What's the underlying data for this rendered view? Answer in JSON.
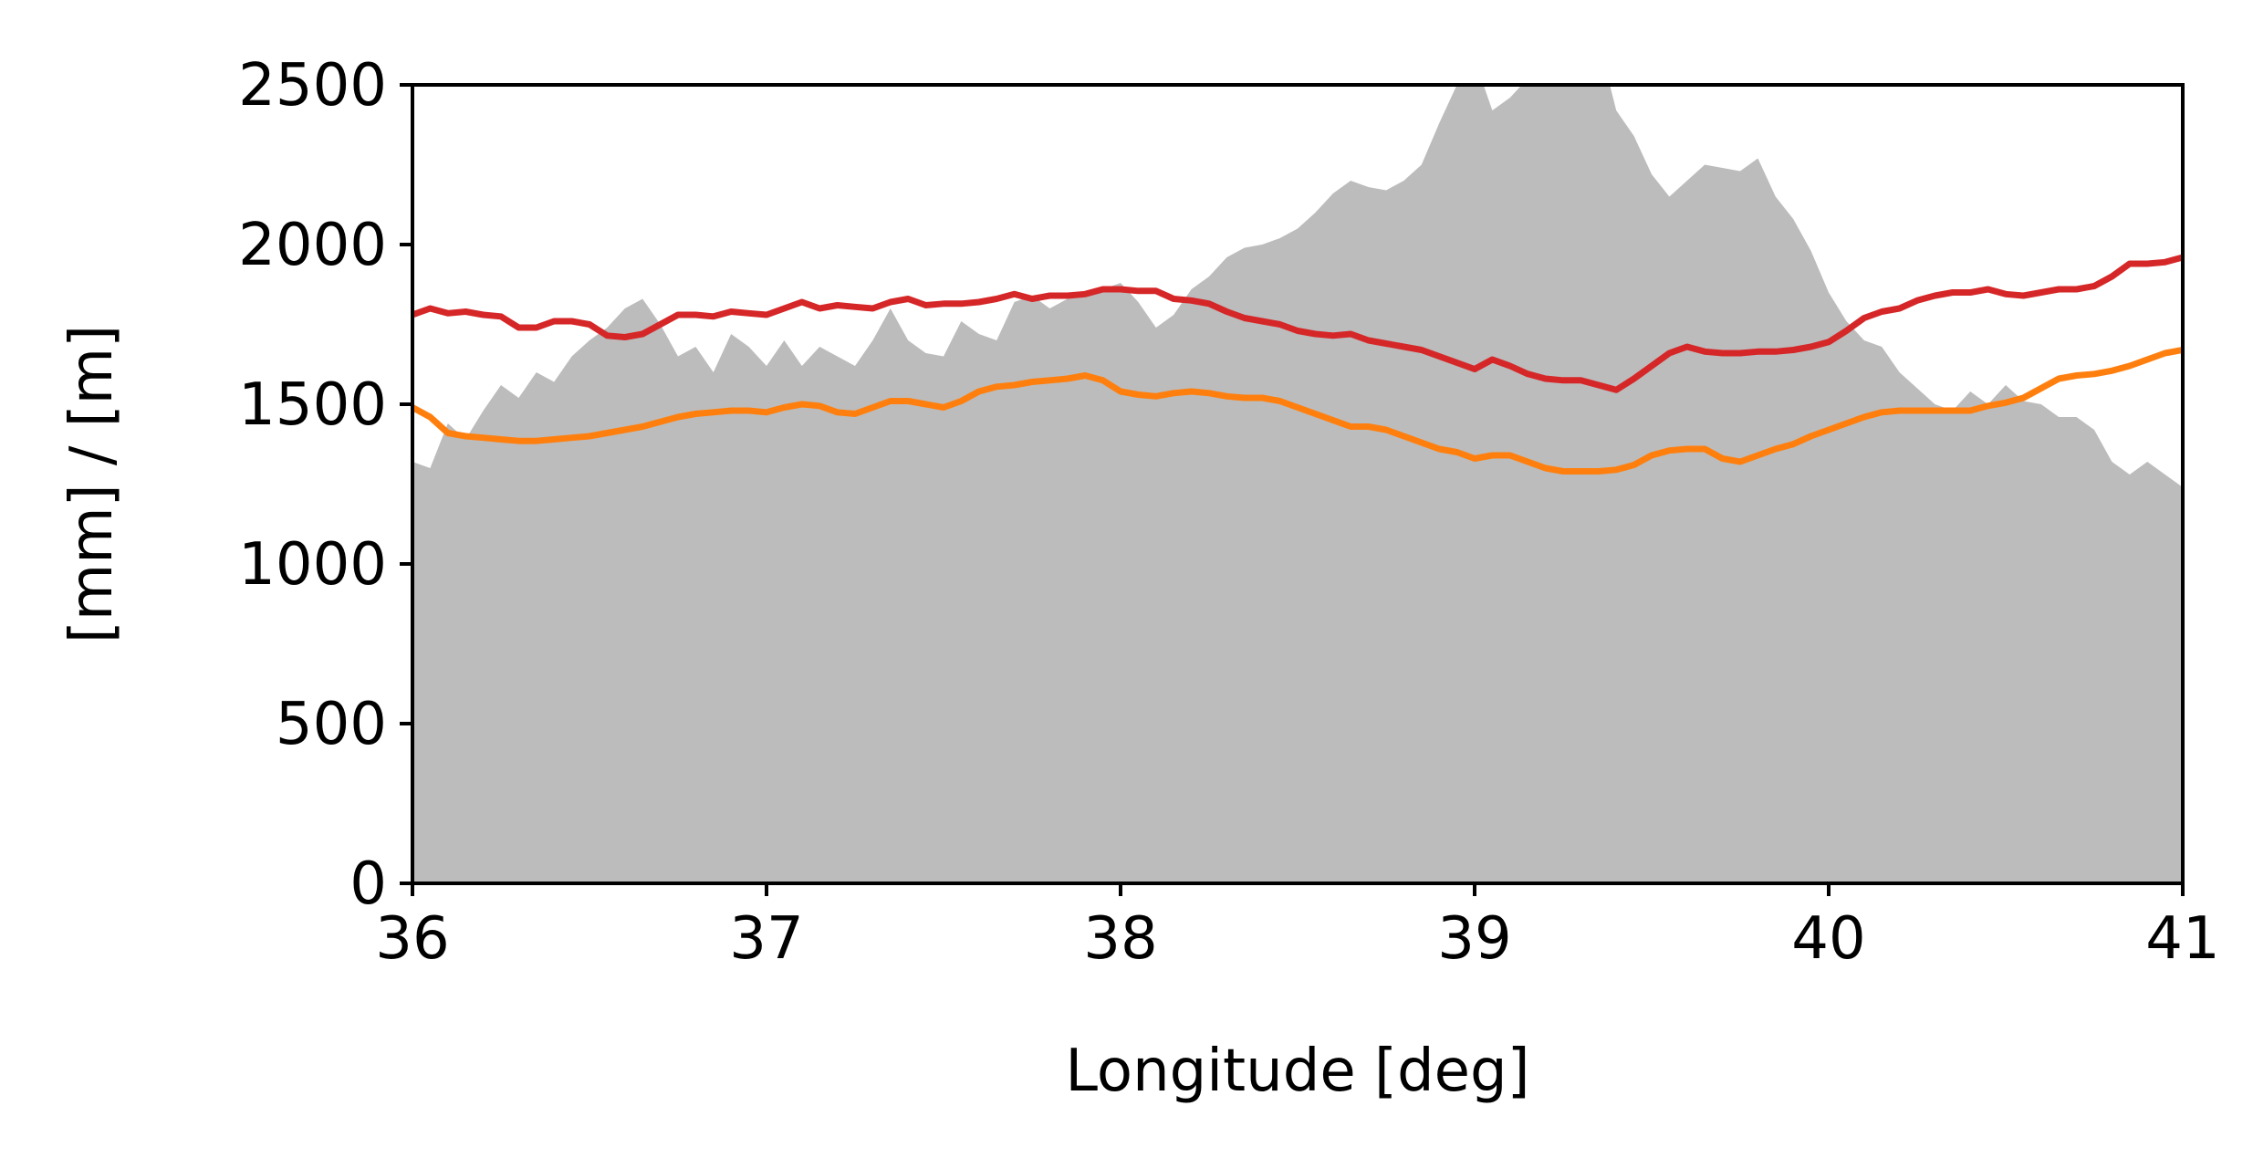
{
  "chart_data": {
    "type": "line",
    "title": "",
    "xlabel": "Longitude [deg]",
    "ylabel": "[mm] / [m]",
    "xlim": [
      36,
      41
    ],
    "ylim": [
      0,
      2500
    ],
    "xticks": [
      36,
      37,
      38,
      39,
      40,
      41
    ],
    "xtick_labels": [
      "36",
      "37",
      "38",
      "39",
      "40",
      "41"
    ],
    "yticks": [
      0,
      500,
      1000,
      1500,
      2000,
      2500
    ],
    "ytick_labels": [
      "0",
      "500",
      "1000",
      "1500",
      "2000",
      "2500"
    ],
    "grid": false,
    "legend": "none",
    "area": {
      "color": "#bcbcbc",
      "x": [
        36.0,
        36.05,
        36.1,
        36.15,
        36.2,
        36.25,
        36.3,
        36.35,
        36.4,
        36.45,
        36.5,
        36.55,
        36.6,
        36.65,
        36.7,
        36.75,
        36.8,
        36.85,
        36.9,
        36.95,
        37.0,
        37.05,
        37.1,
        37.15,
        37.2,
        37.25,
        37.3,
        37.35,
        37.4,
        37.45,
        37.5,
        37.55,
        37.6,
        37.65,
        37.7,
        37.75,
        37.8,
        37.85,
        37.9,
        37.95,
        38.0,
        38.05,
        38.1,
        38.15,
        38.2,
        38.25,
        38.3,
        38.35,
        38.4,
        38.45,
        38.5,
        38.55,
        38.6,
        38.65,
        38.7,
        38.75,
        38.8,
        38.85,
        38.9,
        38.95,
        39.0,
        39.05,
        39.1,
        39.15,
        39.2,
        39.25,
        39.3,
        39.35,
        39.4,
        39.45,
        39.5,
        39.55,
        39.6,
        39.65,
        39.7,
        39.75,
        39.8,
        39.85,
        39.9,
        39.95,
        40.0,
        40.05,
        40.1,
        40.15,
        40.2,
        40.25,
        40.3,
        40.35,
        40.4,
        40.45,
        40.5,
        40.55,
        40.6,
        40.65,
        40.7,
        40.75,
        40.8,
        40.85,
        40.9,
        40.95,
        41.0
      ],
      "y": [
        1320,
        1300,
        1440,
        1390,
        1480,
        1560,
        1520,
        1600,
        1570,
        1650,
        1700,
        1740,
        1800,
        1830,
        1750,
        1650,
        1680,
        1600,
        1720,
        1680,
        1620,
        1700,
        1620,
        1680,
        1650,
        1620,
        1700,
        1800,
        1700,
        1660,
        1650,
        1760,
        1720,
        1700,
        1820,
        1840,
        1800,
        1830,
        1850,
        1860,
        1880,
        1820,
        1740,
        1780,
        1860,
        1900,
        1960,
        1990,
        2000,
        2020,
        2050,
        2100,
        2160,
        2200,
        2180,
        2170,
        2200,
        2250,
        2380,
        2500,
        2580,
        2420,
        2460,
        2520,
        2600,
        2620,
        2700,
        2640,
        2420,
        2340,
        2220,
        2150,
        2200,
        2250,
        2240,
        2230,
        2270,
        2150,
        2080,
        1980,
        1850,
        1760,
        1700,
        1680,
        1600,
        1550,
        1500,
        1480,
        1540,
        1500,
        1560,
        1510,
        1500,
        1460,
        1460,
        1420,
        1320,
        1280,
        1320,
        1280,
        1240
      ]
    },
    "series": [
      {
        "color": "#d62728",
        "x": [
          36.0,
          36.05,
          36.1,
          36.15,
          36.2,
          36.25,
          36.3,
          36.35,
          36.4,
          36.45,
          36.5,
          36.55,
          36.6,
          36.65,
          36.7,
          36.75,
          36.8,
          36.85,
          36.9,
          36.95,
          37.0,
          37.05,
          37.1,
          37.15,
          37.2,
          37.25,
          37.3,
          37.35,
          37.4,
          37.45,
          37.5,
          37.55,
          37.6,
          37.65,
          37.7,
          37.75,
          37.8,
          37.85,
          37.9,
          37.95,
          38.0,
          38.05,
          38.1,
          38.15,
          38.2,
          38.25,
          38.3,
          38.35,
          38.4,
          38.45,
          38.5,
          38.55,
          38.6,
          38.65,
          38.7,
          38.75,
          38.8,
          38.85,
          38.9,
          38.95,
          39.0,
          39.05,
          39.1,
          39.15,
          39.2,
          39.25,
          39.3,
          39.35,
          39.4,
          39.45,
          39.5,
          39.55,
          39.6,
          39.65,
          39.7,
          39.75,
          39.8,
          39.85,
          39.9,
          39.95,
          40.0,
          40.05,
          40.1,
          40.15,
          40.2,
          40.25,
          40.3,
          40.35,
          40.4,
          40.45,
          40.5,
          40.55,
          40.6,
          40.65,
          40.7,
          40.75,
          40.8,
          40.85,
          40.9,
          40.95,
          41.0
        ],
        "y": [
          1780,
          1800,
          1785,
          1790,
          1780,
          1775,
          1740,
          1740,
          1760,
          1760,
          1750,
          1715,
          1710,
          1720,
          1750,
          1780,
          1780,
          1775,
          1790,
          1785,
          1780,
          1800,
          1820,
          1800,
          1810,
          1805,
          1800,
          1820,
          1830,
          1810,
          1815,
          1815,
          1820,
          1830,
          1845,
          1830,
          1840,
          1840,
          1845,
          1860,
          1860,
          1855,
          1855,
          1830,
          1825,
          1815,
          1790,
          1770,
          1760,
          1750,
          1730,
          1720,
          1715,
          1720,
          1700,
          1690,
          1680,
          1670,
          1650,
          1630,
          1610,
          1640,
          1620,
          1595,
          1580,
          1575,
          1575,
          1560,
          1545,
          1580,
          1620,
          1660,
          1680,
          1665,
          1660,
          1660,
          1665,
          1665,
          1670,
          1680,
          1695,
          1730,
          1770,
          1790,
          1800,
          1825,
          1840,
          1850,
          1850,
          1860,
          1845,
          1840,
          1850,
          1860,
          1860,
          1870,
          1900,
          1940,
          1940,
          1945,
          1960
        ]
      },
      {
        "color": "#ff7f0e",
        "x": [
          36.0,
          36.05,
          36.1,
          36.15,
          36.2,
          36.25,
          36.3,
          36.35,
          36.4,
          36.45,
          36.5,
          36.55,
          36.6,
          36.65,
          36.7,
          36.75,
          36.8,
          36.85,
          36.9,
          36.95,
          37.0,
          37.05,
          37.1,
          37.15,
          37.2,
          37.25,
          37.3,
          37.35,
          37.4,
          37.45,
          37.5,
          37.55,
          37.6,
          37.65,
          37.7,
          37.75,
          37.8,
          37.85,
          37.9,
          37.95,
          38.0,
          38.05,
          38.1,
          38.15,
          38.2,
          38.25,
          38.3,
          38.35,
          38.4,
          38.45,
          38.5,
          38.55,
          38.6,
          38.65,
          38.7,
          38.75,
          38.8,
          38.85,
          38.9,
          38.95,
          39.0,
          39.05,
          39.1,
          39.15,
          39.2,
          39.25,
          39.3,
          39.35,
          39.4,
          39.45,
          39.5,
          39.55,
          39.6,
          39.65,
          39.7,
          39.75,
          39.8,
          39.85,
          39.9,
          39.95,
          40.0,
          40.05,
          40.1,
          40.15,
          40.2,
          40.25,
          40.3,
          40.35,
          40.4,
          40.45,
          40.5,
          40.55,
          40.6,
          40.65,
          40.7,
          40.75,
          40.8,
          40.85,
          40.9,
          40.95,
          41.0
        ],
        "y": [
          1490,
          1460,
          1410,
          1400,
          1395,
          1390,
          1385,
          1385,
          1390,
          1395,
          1400,
          1410,
          1420,
          1430,
          1445,
          1460,
          1470,
          1475,
          1480,
          1480,
          1475,
          1490,
          1500,
          1495,
          1475,
          1470,
          1490,
          1510,
          1510,
          1500,
          1490,
          1510,
          1540,
          1555,
          1560,
          1570,
          1575,
          1580,
          1590,
          1575,
          1540,
          1530,
          1525,
          1535,
          1540,
          1535,
          1525,
          1520,
          1520,
          1510,
          1490,
          1470,
          1450,
          1430,
          1430,
          1420,
          1400,
          1380,
          1360,
          1350,
          1330,
          1340,
          1340,
          1320,
          1300,
          1290,
          1290,
          1290,
          1295,
          1310,
          1340,
          1355,
          1360,
          1360,
          1330,
          1320,
          1340,
          1360,
          1375,
          1400,
          1420,
          1440,
          1460,
          1475,
          1480,
          1480,
          1480,
          1480,
          1480,
          1495,
          1505,
          1520,
          1550,
          1580,
          1590,
          1595,
          1605,
          1620,
          1640,
          1660,
          1670
        ]
      }
    ]
  }
}
